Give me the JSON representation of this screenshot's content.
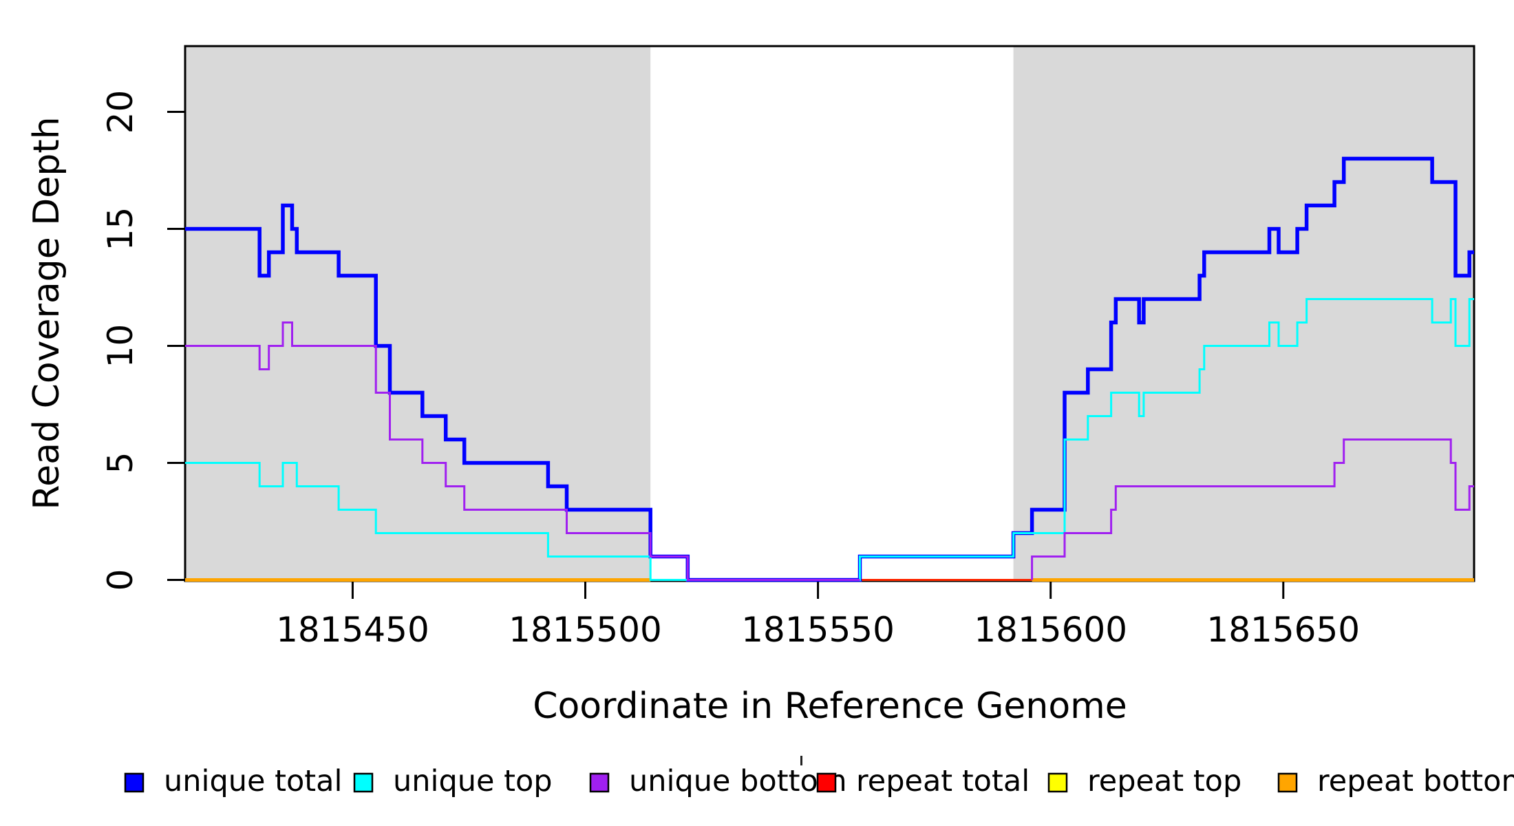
{
  "chart_data": {
    "type": "line",
    "subtype": "step-coverage",
    "title": "",
    "xlabel": "Coordinate in Reference Genome",
    "ylabel": "Read Coverage Depth",
    "x_domain": [
      1815414,
      1815691
    ],
    "ylim": [
      0,
      22.8
    ],
    "x_ticks": [
      1815450,
      1815500,
      1815550,
      1815600,
      1815650
    ],
    "y_ticks": [
      0,
      5,
      10,
      15,
      20
    ],
    "grid": false,
    "background_color": "#ffffff",
    "shade_color": "#d9d9d9",
    "shaded_regions": [
      {
        "x1": 1815414,
        "x2": 1815514
      },
      {
        "x1": 1815592,
        "x2": 1815691
      }
    ],
    "series": [
      {
        "name": "repeat top",
        "color": "#ffff00",
        "width": 3,
        "segments": [
          [
            [
              1815414,
              0
            ],
            [
              1815691,
              0
            ]
          ]
        ]
      },
      {
        "name": "repeat total",
        "color": "#ff0000",
        "width": 2.5,
        "segments": [
          [
            [
              1815514,
              0
            ],
            [
              1815596,
              0
            ]
          ]
        ]
      },
      {
        "name": "repeat bottom",
        "color": "#ffa500",
        "width": 5,
        "segments": [
          [
            [
              1815414,
              0
            ],
            [
              1815514,
              0
            ]
          ],
          [
            [
              1815596,
              0
            ],
            [
              1815691,
              0
            ]
          ]
        ]
      },
      {
        "name": "unique total",
        "color": "#0000ff",
        "width": 5.5,
        "segments": [
          [
            [
              1815414,
              15
            ],
            [
              1815430,
              13
            ],
            [
              1815432,
              14
            ],
            [
              1815435,
              16
            ],
            [
              1815437,
              15
            ],
            [
              1815438,
              14
            ],
            [
              1815447,
              13
            ],
            [
              1815455,
              10
            ],
            [
              1815458,
              8
            ],
            [
              1815465,
              7
            ],
            [
              1815470,
              6
            ],
            [
              1815474,
              5
            ],
            [
              1815492,
              4
            ],
            [
              1815496,
              3
            ],
            [
              1815514,
              1
            ],
            [
              1815522,
              0
            ],
            [
              1815559,
              1
            ],
            [
              1815592,
              2
            ],
            [
              1815596,
              3
            ],
            [
              1815603,
              8
            ],
            [
              1815608,
              9
            ],
            [
              1815613,
              11
            ],
            [
              1815614,
              12
            ],
            [
              1815619,
              11
            ],
            [
              1815620,
              12
            ],
            [
              1815632,
              13
            ],
            [
              1815633,
              14
            ],
            [
              1815647,
              15
            ],
            [
              1815649,
              14
            ],
            [
              1815653,
              15
            ],
            [
              1815655,
              16
            ],
            [
              1815661,
              17
            ],
            [
              1815663,
              18
            ],
            [
              1815682,
              17
            ],
            [
              1815687,
              13
            ],
            [
              1815690,
              14
            ],
            [
              1815691,
              14
            ]
          ]
        ]
      },
      {
        "name": "unique top",
        "color": "#00ffff",
        "width": 3,
        "segments": [
          [
            [
              1815414,
              5
            ],
            [
              1815430,
              4
            ],
            [
              1815435,
              5
            ],
            [
              1815438,
              4
            ],
            [
              1815447,
              3
            ],
            [
              1815455,
              2
            ],
            [
              1815492,
              1
            ],
            [
              1815514,
              0
            ],
            [
              1815559,
              1
            ],
            [
              1815592,
              2
            ],
            [
              1815603,
              6
            ],
            [
              1815608,
              7
            ],
            [
              1815613,
              8
            ],
            [
              1815619,
              7
            ],
            [
              1815620,
              8
            ],
            [
              1815632,
              9
            ],
            [
              1815633,
              10
            ],
            [
              1815647,
              11
            ],
            [
              1815649,
              10
            ],
            [
              1815653,
              11
            ],
            [
              1815655,
              12
            ],
            [
              1815682,
              11
            ],
            [
              1815686,
              12
            ],
            [
              1815687,
              10
            ],
            [
              1815690,
              12
            ],
            [
              1815691,
              12
            ]
          ]
        ]
      },
      {
        "name": "unique bottom",
        "color": "#a020f0",
        "width": 3,
        "segments": [
          [
            [
              1815414,
              10
            ],
            [
              1815430,
              9
            ],
            [
              1815432,
              10
            ],
            [
              1815435,
              11
            ],
            [
              1815437,
              10
            ],
            [
              1815455,
              8
            ],
            [
              1815458,
              6
            ],
            [
              1815465,
              5
            ],
            [
              1815470,
              4
            ],
            [
              1815474,
              3
            ],
            [
              1815496,
              2
            ],
            [
              1815514,
              1
            ],
            [
              1815522,
              0
            ],
            [
              1815559,
              0
            ]
          ],
          [
            [
              1815596,
              0
            ],
            [
              1815596,
              1
            ],
            [
              1815603,
              2
            ],
            [
              1815613,
              3
            ],
            [
              1815614,
              4
            ],
            [
              1815661,
              5
            ],
            [
              1815663,
              6
            ],
            [
              1815686,
              5
            ],
            [
              1815687,
              3
            ],
            [
              1815690,
              4
            ],
            [
              1815691,
              4
            ]
          ]
        ]
      }
    ],
    "legend": {
      "position": "bottom",
      "items": [
        {
          "label": "unique total",
          "color": "#0000ff"
        },
        {
          "label": "unique top",
          "color": "#00ffff"
        },
        {
          "label": "unique bottom",
          "color": "#a020f0"
        },
        {
          "label": "repeat total",
          "color": "#ff0000"
        },
        {
          "label": "repeat top",
          "color": "#ffff00"
        },
        {
          "label": "repeat bottom",
          "color": "#ffa500"
        }
      ]
    }
  }
}
